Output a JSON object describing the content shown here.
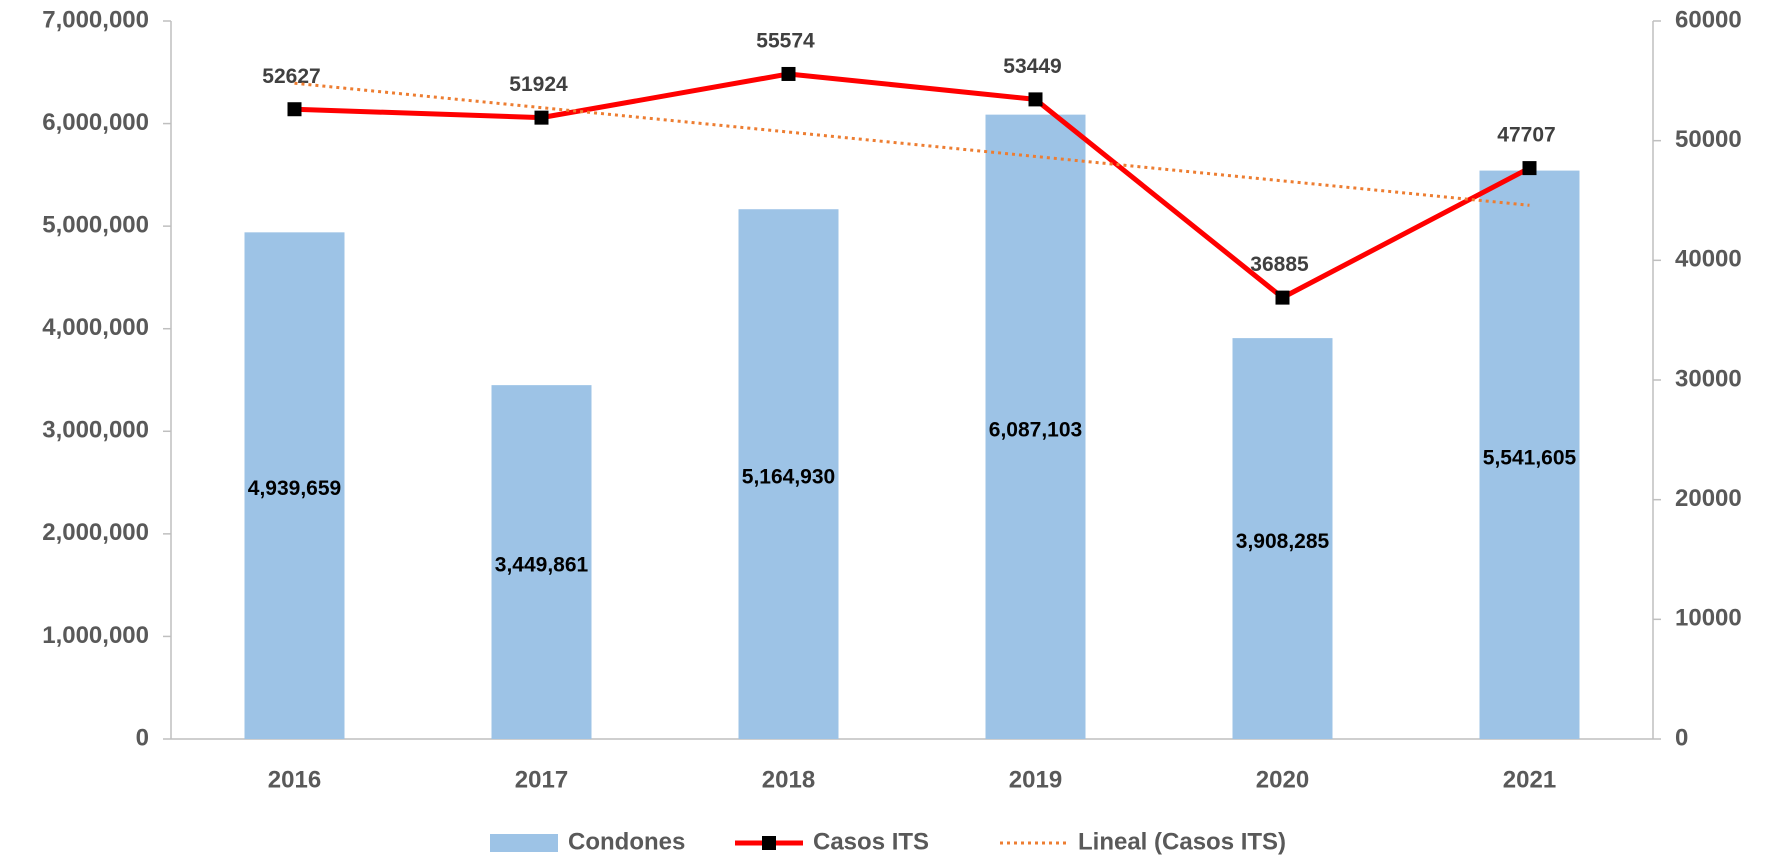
{
  "chart_data": {
    "type": "bar",
    "categories": [
      "2016",
      "2017",
      "2018",
      "2019",
      "2020",
      "2021"
    ],
    "series": [
      {
        "name": "Condones",
        "type": "bar",
        "color": "#9dc3e6",
        "values": [
          4939659,
          3449861,
          5164930,
          6087103,
          3908285,
          5541605
        ],
        "value_labels": [
          "4,939,659",
          "3,449,861",
          "5,164,930",
          "6,087,103",
          "3,908,285",
          "5,541,605"
        ]
      },
      {
        "name": "Casos ITS",
        "type": "line",
        "axis": "y2",
        "color": "#ff0000",
        "marker_color": "#000000",
        "line_style": "solid",
        "values": [
          52627,
          51924,
          55574,
          53449,
          36885,
          47707
        ]
      },
      {
        "name": "Lineal (Casos ITS)",
        "type": "line",
        "axis": "y2",
        "color": "#ed7d31",
        "line_style": "dotted",
        "values": [
          54800,
          52760,
          50720,
          48680,
          46640,
          44600
        ]
      }
    ],
    "ylim": [
      0,
      7000000
    ],
    "yticks": [
      {
        "value": 0,
        "label": "0"
      },
      {
        "value": 1000000,
        "label": "1,000,000"
      },
      {
        "value": 2000000,
        "label": "2,000,000"
      },
      {
        "value": 3000000,
        "label": "3,000,000"
      },
      {
        "value": 4000000,
        "label": "4,000,000"
      },
      {
        "value": 5000000,
        "label": "5,000,000"
      },
      {
        "value": 6000000,
        "label": "6,000,000"
      },
      {
        "value": 7000000,
        "label": "7,000,000"
      }
    ],
    "y2lim": [
      0,
      60000
    ],
    "y2ticks": [
      0,
      10000,
      20000,
      30000,
      40000,
      50000,
      60000
    ],
    "grid": false,
    "legend": "bottom"
  }
}
